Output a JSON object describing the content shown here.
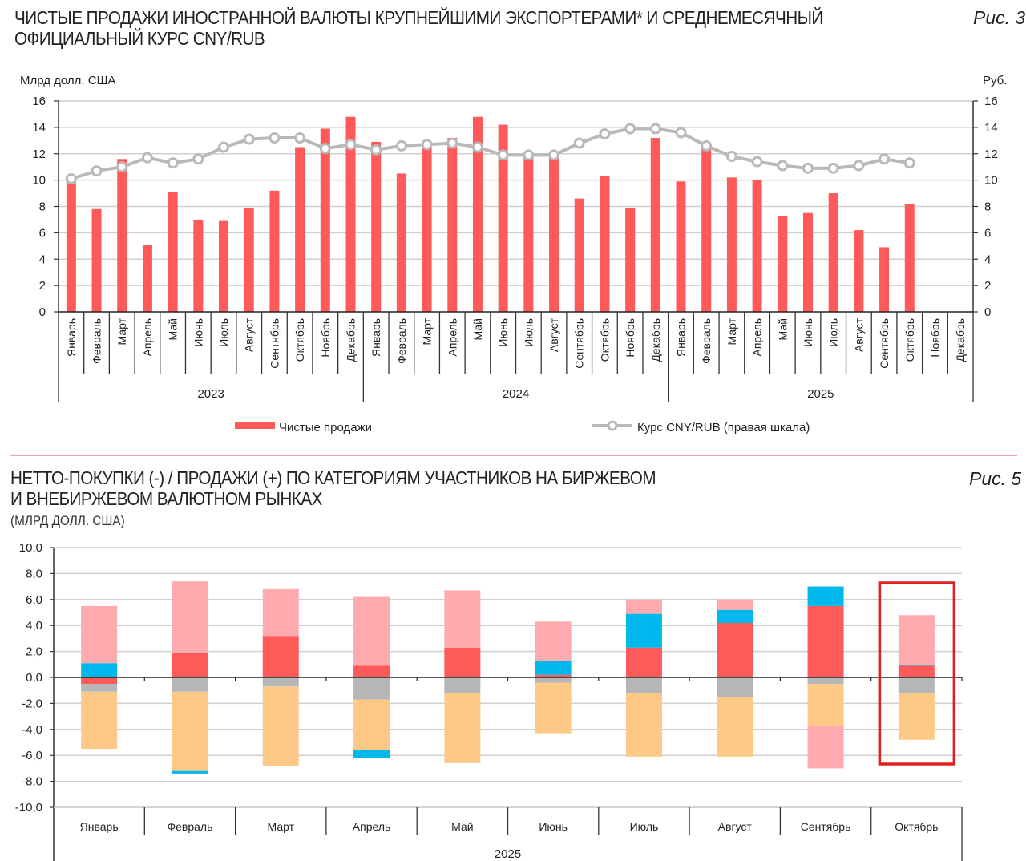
{
  "figure3": {
    "title_line1": "ЧИСТЫЕ ПРОДАЖИ ИНОСТРАННОЙ ВАЛЮТЫ КРУПНЕЙШИМИ ЭКСПОРТЕРАМИ* И СРЕДНЕМЕСЯЧНЫЙ",
    "title_line2": "ОФИЦИАЛЬНЫЙ КУРС CNY/RUB",
    "fig_label": "Рис. 3"
  },
  "figure5": {
    "title_line1": "НЕТТО-ПОКУПКИ (-) / ПРОДАЖИ (+) ПО КАТЕГОРИЯМ УЧАСТНИКОВ НА БИРЖЕВОМ",
    "title_line2": "И ВНЕБИРЖЕВОМ ВАЛЮТНОМ РЫНКАХ",
    "subtitle": "(МЛРД ДОЛЛ. США)",
    "fig_label": "Рис. 5"
  },
  "colors": {
    "net_sales": "#fe5a5a",
    "rate_line": "#b9b9b9",
    "separator": "#f2a0a8",
    "highlight_box": "#e02020",
    "seg_pink": "#ffaaae",
    "seg_red": "#fe5a5a",
    "seg_blue": "#00b9ec",
    "seg_gray": "#b5b6b8",
    "seg_orange": "#fec987"
  },
  "chart_data": [
    {
      "type": "bar+line",
      "title": "ЧИСТЫЕ ПРОДАЖИ ИНОСТРАННОЙ ВАЛЮТЫ КРУПНЕЙШИМИ ЭКСПОРТЕРАМИ* И СРЕДНЕМЕСЯЧНЫЙ ОФИЦИАЛЬНЫЙ КУРС CNY/RUB",
      "ylabel_left": "Млрд долл. США",
      "ylabel_right": "Руб.",
      "ylim_left": [
        0,
        16
      ],
      "ylim_right": [
        0,
        16
      ],
      "yticks": [
        "0",
        "2",
        "4",
        "6",
        "8",
        "10",
        "12",
        "14",
        "16"
      ],
      "grid": true,
      "months": [
        "Январь",
        "Февраль",
        "Март",
        "Апрель",
        "Май",
        "Июнь",
        "Июль",
        "Август",
        "Сентябрь",
        "Октябрь",
        "Ноябрь",
        "Декабрь"
      ],
      "years": [
        "2023",
        "2024",
        "2025"
      ],
      "series": [
        {
          "name": "Чистые продажи",
          "kind": "bar",
          "axis": "left",
          "values": [
            9.9,
            7.8,
            11.6,
            5.1,
            9.1,
            7.0,
            6.9,
            7.9,
            9.2,
            12.5,
            13.9,
            14.8,
            12.9,
            10.5,
            12.6,
            13.2,
            14.8,
            14.2,
            11.8,
            11.8,
            8.6,
            10.3,
            7.9,
            13.2,
            9.9,
            12.4,
            10.2,
            10.0,
            7.3,
            7.5,
            9.0,
            6.2,
            4.9,
            8.2,
            null,
            null
          ]
        },
        {
          "name": "Курс CNY/RUB (правая шкала)",
          "kind": "line",
          "axis": "right",
          "values": [
            10.1,
            10.7,
            11.0,
            11.7,
            11.3,
            11.6,
            12.5,
            13.1,
            13.2,
            13.2,
            12.4,
            12.7,
            12.3,
            12.6,
            12.7,
            12.8,
            12.5,
            11.9,
            11.9,
            11.9,
            12.8,
            13.5,
            13.9,
            13.9,
            13.6,
            12.6,
            11.8,
            11.4,
            11.1,
            10.9,
            10.9,
            11.1,
            11.6,
            11.3,
            null,
            null
          ]
        }
      ],
      "legend": [
        "Чистые продажи",
        "Курс CNY/RUB (правая шкала)"
      ],
      "legend_position": "bottom"
    },
    {
      "type": "stacked-bar",
      "title": "НЕТТО-ПОКУПКИ (-) / ПРОДАЖИ (+) ПО КАТЕГОРИЯМ УЧАСТНИКОВ НА БИРЖЕВОМ И ВНЕБИРЖЕВОМ ВАЛЮТНОМ РЫНКАХ",
      "subtitle": "(МЛРД ДОЛЛ. США)",
      "ylim": [
        -10,
        10
      ],
      "yticks": [
        "-10,0",
        "-8,0",
        "-6,0",
        "-4,0",
        "-2,0",
        "0,0",
        "2,0",
        "4,0",
        "6,0",
        "8,0",
        "10,0"
      ],
      "grid": true,
      "categories": [
        "Январь",
        "Февраль",
        "Март",
        "Апрель",
        "Май",
        "Июнь",
        "Июль",
        "Август",
        "Сентябрь",
        "Октябрь"
      ],
      "year_label": "2025",
      "highlighted_category": "Октябрь",
      "stacks": [
        {
          "category": "Январь",
          "positive": [
            {
              "color": "seg_blue",
              "value": 1.1
            },
            {
              "color": "seg_pink",
              "value": 4.4
            }
          ],
          "negative": [
            {
              "color": "seg_red",
              "value": -0.5
            },
            {
              "color": "seg_gray",
              "value": -0.6
            },
            {
              "color": "seg_orange",
              "value": -4.4
            }
          ]
        },
        {
          "category": "Февраль",
          "positive": [
            {
              "color": "seg_red",
              "value": 1.9
            },
            {
              "color": "seg_pink",
              "value": 5.5
            }
          ],
          "negative": [
            {
              "color": "seg_gray",
              "value": -1.1
            },
            {
              "color": "seg_orange",
              "value": -6.1
            },
            {
              "color": "seg_blue",
              "value": -0.2
            }
          ]
        },
        {
          "category": "Март",
          "positive": [
            {
              "color": "seg_red",
              "value": 3.2
            },
            {
              "color": "seg_pink",
              "value": 3.6
            }
          ],
          "negative": [
            {
              "color": "seg_gray",
              "value": -0.7
            },
            {
              "color": "seg_orange",
              "value": -6.1
            }
          ]
        },
        {
          "category": "Апрель",
          "positive": [
            {
              "color": "seg_red",
              "value": 0.9
            },
            {
              "color": "seg_pink",
              "value": 5.3
            }
          ],
          "negative": [
            {
              "color": "seg_gray",
              "value": -1.7
            },
            {
              "color": "seg_orange",
              "value": -3.9
            },
            {
              "color": "seg_blue",
              "value": -0.6
            }
          ]
        },
        {
          "category": "Май",
          "positive": [
            {
              "color": "seg_red",
              "value": 2.3
            },
            {
              "color": "seg_pink",
              "value": 4.4
            }
          ],
          "negative": [
            {
              "color": "seg_gray",
              "value": -1.2
            },
            {
              "color": "seg_orange",
              "value": -5.4
            }
          ]
        },
        {
          "category": "Июнь",
          "positive": [
            {
              "color": "seg_red",
              "value": 0.2
            },
            {
              "color": "seg_blue",
              "value": 1.1
            },
            {
              "color": "seg_pink",
              "value": 3.0
            }
          ],
          "negative": [
            {
              "color": "seg_gray",
              "value": -0.4
            },
            {
              "color": "seg_orange",
              "value": -3.9
            }
          ]
        },
        {
          "category": "Июль",
          "positive": [
            {
              "color": "seg_red",
              "value": 2.3
            },
            {
              "color": "seg_blue",
              "value": 2.6
            },
            {
              "color": "seg_pink",
              "value": 1.1
            }
          ],
          "negative": [
            {
              "color": "seg_gray",
              "value": -1.2
            },
            {
              "color": "seg_orange",
              "value": -4.9
            }
          ]
        },
        {
          "category": "Август",
          "positive": [
            {
              "color": "seg_red",
              "value": 4.2
            },
            {
              "color": "seg_blue",
              "value": 1.0
            },
            {
              "color": "seg_pink",
              "value": 0.8
            }
          ],
          "negative": [
            {
              "color": "seg_gray",
              "value": -1.5
            },
            {
              "color": "seg_orange",
              "value": -4.6
            }
          ]
        },
        {
          "category": "Сентябрь",
          "positive": [
            {
              "color": "seg_red",
              "value": 5.5
            },
            {
              "color": "seg_blue",
              "value": 1.5
            }
          ],
          "negative": [
            {
              "color": "seg_gray",
              "value": -0.5
            },
            {
              "color": "seg_orange",
              "value": -3.2
            },
            {
              "color": "seg_pink",
              "value": -3.3
            }
          ]
        },
        {
          "category": "Октябрь",
          "positive": [
            {
              "color": "seg_red",
              "value": 0.9
            },
            {
              "color": "seg_blue",
              "value": 0.1
            },
            {
              "color": "seg_pink",
              "value": 3.8
            }
          ],
          "negative": [
            {
              "color": "seg_gray",
              "value": -1.2
            },
            {
              "color": "seg_orange",
              "value": -3.6
            }
          ]
        }
      ]
    }
  ]
}
